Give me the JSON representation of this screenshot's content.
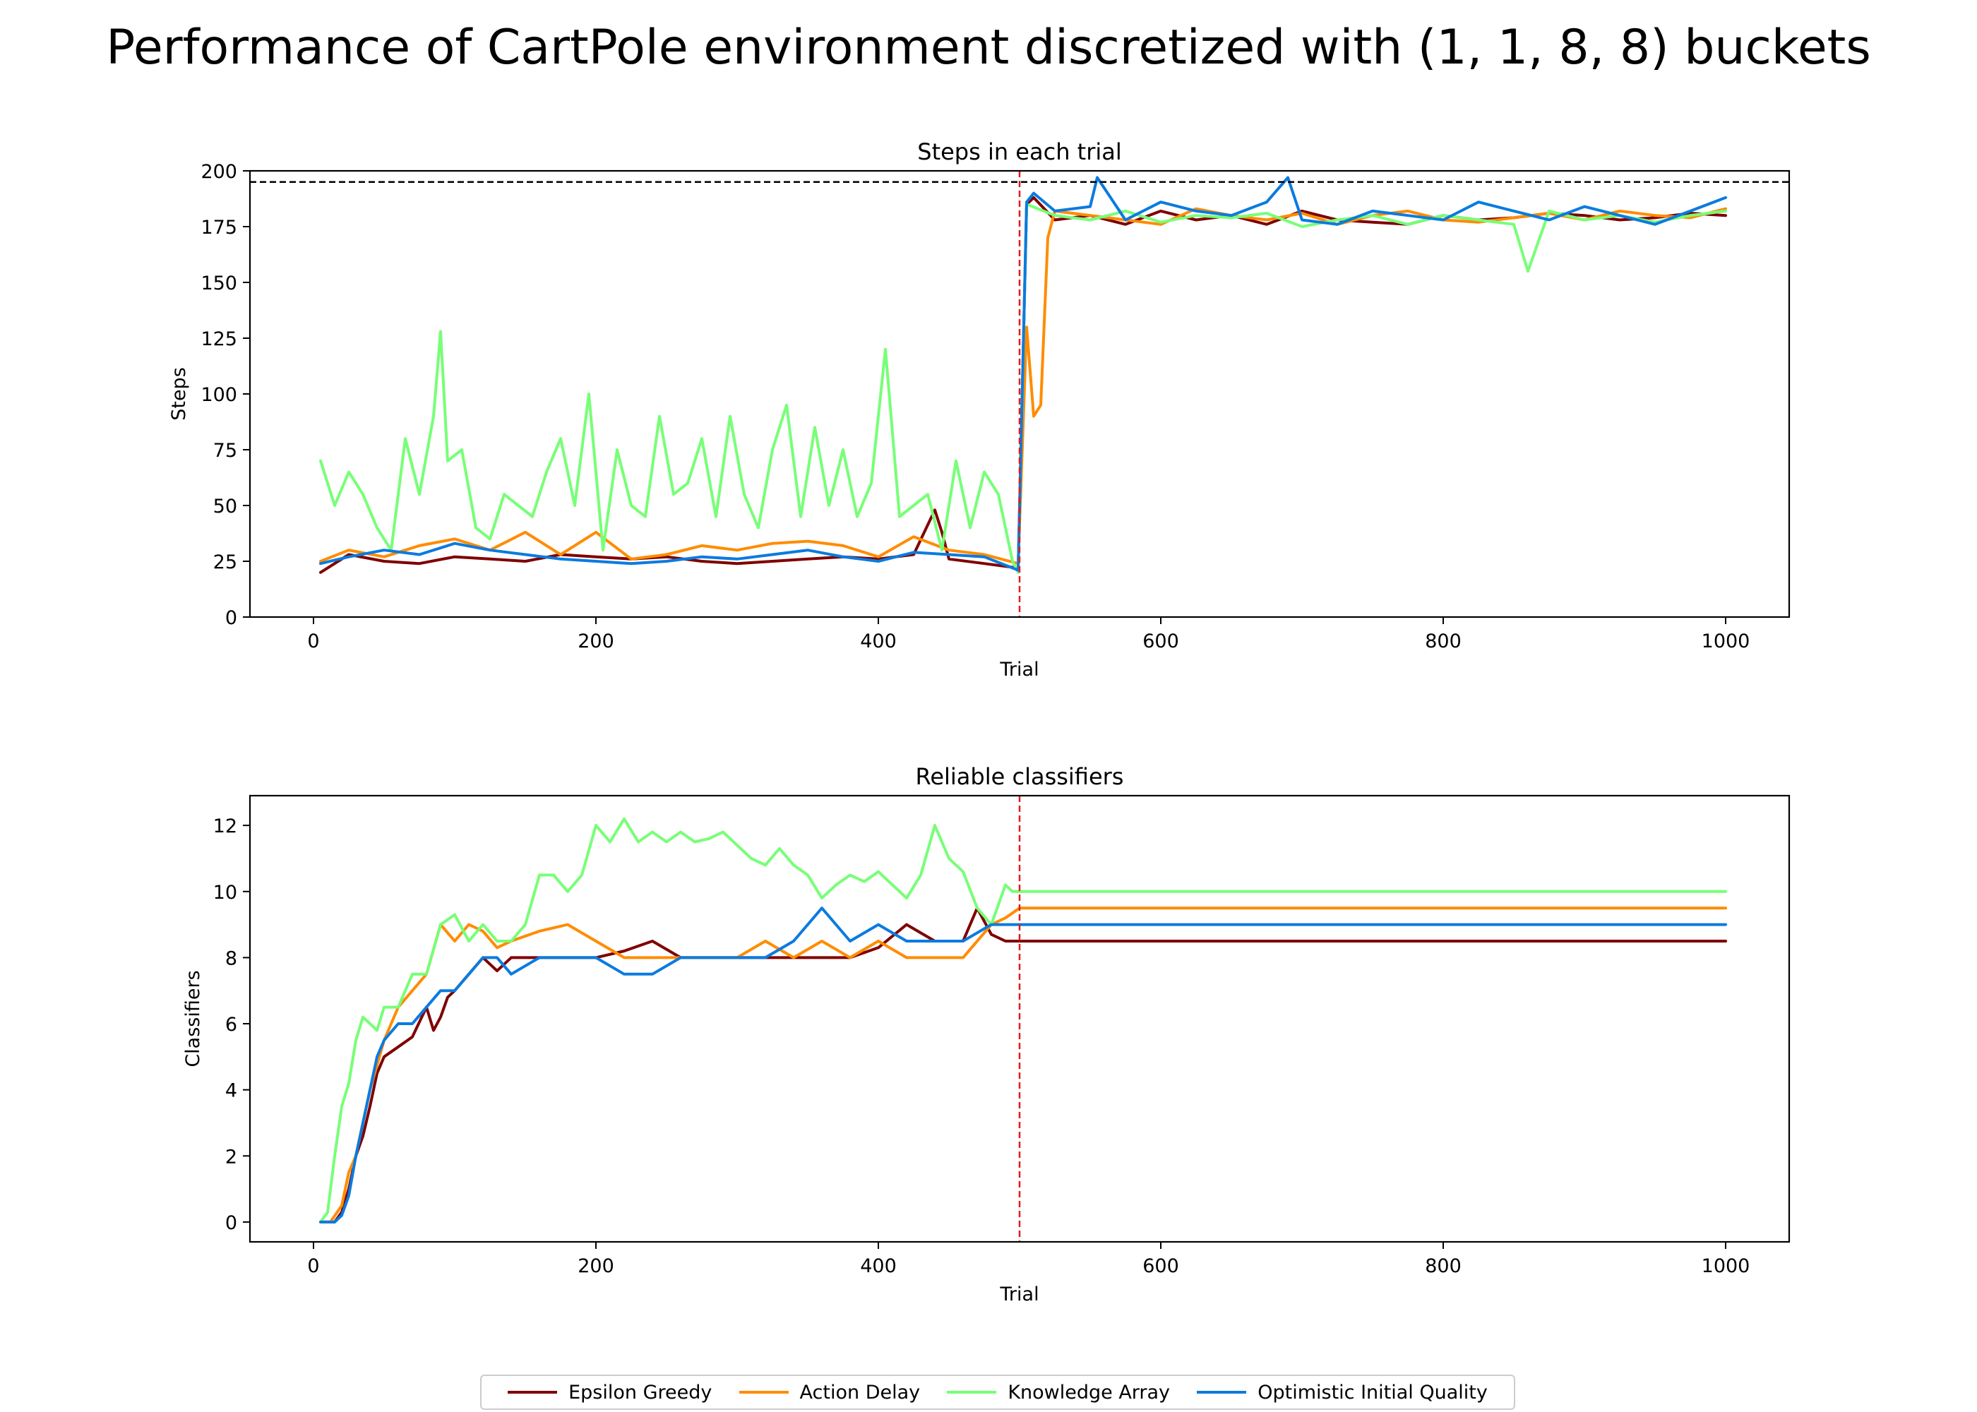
{
  "suptitle": "Performance of CartPole environment discretized with (1, 1, 8, 8) buckets",
  "colors": {
    "Epsilon Greedy": "#7f0000",
    "Action Delay": "#ff8c00",
    "Knowledge Array": "#77ff77",
    "Optimistic Initial Quality": "#0a7be0",
    "threshold_line": "#000000",
    "explore_exploit_split": "#e41a1c"
  },
  "chart_data": [
    {
      "type": "line",
      "title": "Steps in each trial",
      "xlabel": "Trial",
      "ylabel": "Steps",
      "xlim": [
        -45,
        1045
      ],
      "ylim": [
        0,
        200
      ],
      "xticks": [
        0,
        200,
        400,
        600,
        800,
        1000
      ],
      "yticks": [
        0,
        25,
        50,
        75,
        100,
        125,
        150,
        175,
        200
      ],
      "hline": 195,
      "vline": 500,
      "grid": false,
      "series": [
        {
          "name": "Epsilon Greedy",
          "x": [
            5,
            25,
            50,
            75,
            100,
            125,
            150,
            175,
            200,
            225,
            250,
            275,
            300,
            325,
            350,
            375,
            400,
            425,
            440,
            445,
            450,
            475,
            499,
            505,
            510,
            525,
            550,
            575,
            600,
            625,
            650,
            675,
            700,
            725,
            750,
            775,
            800,
            825,
            850,
            875,
            900,
            925,
            950,
            975,
            1000
          ],
          "y": [
            20,
            28,
            25,
            24,
            27,
            26,
            25,
            28,
            27,
            26,
            27,
            25,
            24,
            25,
            26,
            27,
            26,
            28,
            48,
            38,
            26,
            24,
            22,
            185,
            188,
            178,
            180,
            176,
            182,
            178,
            180,
            176,
            182,
            178,
            177,
            176,
            180,
            178,
            179,
            181,
            180,
            178,
            179,
            181,
            180
          ]
        },
        {
          "name": "Action Delay",
          "x": [
            5,
            25,
            50,
            75,
            100,
            125,
            150,
            175,
            200,
            225,
            250,
            275,
            300,
            325,
            350,
            375,
            400,
            425,
            450,
            475,
            499,
            505,
            510,
            515,
            520,
            525,
            550,
            575,
            600,
            625,
            650,
            675,
            700,
            725,
            750,
            775,
            800,
            825,
            850,
            875,
            900,
            925,
            950,
            975,
            1000
          ],
          "y": [
            25,
            30,
            27,
            32,
            35,
            30,
            38,
            28,
            38,
            26,
            28,
            32,
            30,
            33,
            34,
            32,
            27,
            36,
            30,
            28,
            24,
            130,
            90,
            95,
            170,
            182,
            180,
            178,
            176,
            183,
            180,
            178,
            181,
            176,
            180,
            182,
            178,
            177,
            179,
            181,
            178,
            182,
            180,
            179,
            183
          ]
        },
        {
          "name": "Knowledge Array",
          "x": [
            5,
            15,
            25,
            35,
            45,
            55,
            65,
            75,
            85,
            90,
            95,
            105,
            115,
            125,
            135,
            145,
            155,
            165,
            175,
            185,
            195,
            205,
            215,
            225,
            235,
            245,
            255,
            265,
            275,
            285,
            295,
            305,
            315,
            325,
            335,
            345,
            355,
            365,
            375,
            385,
            395,
            405,
            415,
            425,
            435,
            445,
            455,
            465,
            475,
            485,
            495,
            499,
            505,
            525,
            550,
            575,
            600,
            625,
            650,
            675,
            700,
            725,
            750,
            775,
            800,
            825,
            850,
            860,
            875,
            900,
            925,
            950,
            975,
            1000
          ],
          "y": [
            70,
            50,
            65,
            55,
            40,
            30,
            80,
            55,
            90,
            128,
            70,
            75,
            40,
            35,
            55,
            50,
            45,
            65,
            80,
            50,
            100,
            30,
            75,
            50,
            45,
            90,
            55,
            60,
            80,
            45,
            90,
            55,
            40,
            75,
            95,
            45,
            85,
            50,
            75,
            45,
            60,
            120,
            45,
            50,
            55,
            30,
            70,
            40,
            65,
            55,
            25,
            20,
            185,
            180,
            178,
            182,
            177,
            180,
            179,
            181,
            175,
            178,
            180,
            176,
            180,
            178,
            176,
            155,
            182,
            178,
            180,
            177,
            180,
            182
          ]
        },
        {
          "name": "Optimistic Initial Quality",
          "x": [
            5,
            25,
            50,
            75,
            100,
            125,
            150,
            175,
            200,
            225,
            250,
            275,
            300,
            325,
            350,
            375,
            400,
            425,
            450,
            475,
            499,
            505,
            510,
            525,
            550,
            555,
            575,
            600,
            625,
            650,
            675,
            690,
            700,
            725,
            750,
            775,
            800,
            825,
            850,
            875,
            900,
            925,
            950,
            975,
            1000
          ],
          "y": [
            24,
            27,
            30,
            28,
            33,
            30,
            28,
            26,
            25,
            24,
            25,
            27,
            26,
            28,
            30,
            27,
            25,
            29,
            28,
            27,
            21,
            186,
            190,
            182,
            184,
            197,
            178,
            186,
            182,
            180,
            186,
            197,
            178,
            176,
            182,
            180,
            178,
            186,
            182,
            178,
            184,
            180,
            176,
            182,
            188
          ]
        }
      ]
    },
    {
      "type": "line",
      "title": "Reliable classifiers",
      "xlabel": "Trial",
      "ylabel": "Classifiers",
      "xlim": [
        -45,
        1045
      ],
      "ylim": [
        -0.6,
        12.9
      ],
      "xticks": [
        0,
        200,
        400,
        600,
        800,
        1000
      ],
      "yticks": [
        0,
        2,
        4,
        6,
        8,
        10,
        12
      ],
      "vline": 500,
      "grid": false,
      "series": [
        {
          "name": "Epsilon Greedy",
          "x": [
            5,
            15,
            20,
            25,
            30,
            35,
            40,
            45,
            50,
            60,
            70,
            80,
            85,
            90,
            95,
            100,
            110,
            120,
            130,
            140,
            160,
            180,
            200,
            220,
            240,
            260,
            280,
            300,
            320,
            340,
            360,
            380,
            400,
            420,
            440,
            460,
            470,
            480,
            490,
            500,
            1000
          ],
          "y": [
            0,
            0,
            0.3,
            1,
            2,
            2.6,
            3.5,
            4.5,
            5,
            5.3,
            5.6,
            6.5,
            5.8,
            6.2,
            6.8,
            7,
            7.5,
            8,
            7.6,
            8,
            8,
            8,
            8,
            8.2,
            8.5,
            8,
            8,
            8,
            8,
            8,
            8,
            8,
            8.3,
            9,
            8.5,
            8.5,
            9.5,
            8.7,
            8.5,
            8.5,
            8.5
          ]
        },
        {
          "name": "Action Delay",
          "x": [
            5,
            12,
            20,
            25,
            30,
            40,
            50,
            60,
            70,
            80,
            90,
            100,
            110,
            120,
            130,
            140,
            160,
            180,
            200,
            220,
            240,
            260,
            280,
            300,
            320,
            340,
            360,
            380,
            400,
            420,
            440,
            460,
            480,
            490,
            500,
            1000
          ],
          "y": [
            0,
            0,
            0.5,
            1.5,
            2,
            4,
            5.5,
            6.5,
            7,
            7.5,
            9,
            8.5,
            9,
            8.8,
            8.3,
            8.5,
            8.8,
            9,
            8.5,
            8,
            8,
            8,
            8,
            8,
            8.5,
            8,
            8.5,
            8,
            8.5,
            8,
            8,
            8,
            9,
            9.2,
            9.5,
            9.5
          ]
        },
        {
          "name": "Knowledge Array",
          "x": [
            5,
            10,
            15,
            20,
            25,
            30,
            35,
            40,
            45,
            50,
            60,
            70,
            80,
            90,
            100,
            110,
            120,
            130,
            140,
            150,
            160,
            170,
            180,
            190,
            200,
            210,
            220,
            230,
            240,
            250,
            260,
            270,
            280,
            290,
            300,
            310,
            320,
            330,
            340,
            350,
            360,
            370,
            380,
            390,
            400,
            410,
            420,
            430,
            440,
            450,
            460,
            470,
            480,
            490,
            495,
            500,
            1000
          ],
          "y": [
            0,
            0.3,
            2,
            3.5,
            4.2,
            5.5,
            6.2,
            6,
            5.8,
            6.5,
            6.5,
            7.5,
            7.5,
            9,
            9.3,
            8.5,
            9,
            8.5,
            8.5,
            9,
            10.5,
            10.5,
            10,
            10.5,
            12,
            11.5,
            12.2,
            11.5,
            11.8,
            11.5,
            11.8,
            11.5,
            11.6,
            11.8,
            11.4,
            11,
            10.8,
            11.3,
            10.8,
            10.5,
            9.8,
            10.2,
            10.5,
            10.3,
            10.6,
            10.2,
            9.8,
            10.5,
            12,
            11,
            10.6,
            9.5,
            9,
            10.2,
            10,
            10,
            10
          ]
        },
        {
          "name": "Optimistic Initial Quality",
          "x": [
            5,
            15,
            20,
            25,
            30,
            35,
            40,
            45,
            50,
            60,
            70,
            80,
            90,
            100,
            110,
            120,
            130,
            140,
            160,
            180,
            200,
            220,
            240,
            260,
            280,
            300,
            320,
            340,
            360,
            380,
            400,
            420,
            440,
            460,
            480,
            490,
            500,
            1000
          ],
          "y": [
            0,
            0,
            0.2,
            0.8,
            2,
            3,
            4,
            5,
            5.5,
            6,
            6,
            6.5,
            7,
            7,
            7.5,
            8,
            8,
            7.5,
            8,
            8,
            8,
            7.5,
            7.5,
            8,
            8,
            8,
            8,
            8.5,
            9.5,
            8.5,
            9,
            8.5,
            8.5,
            8.5,
            9,
            9,
            9,
            9
          ]
        }
      ]
    }
  ]
}
